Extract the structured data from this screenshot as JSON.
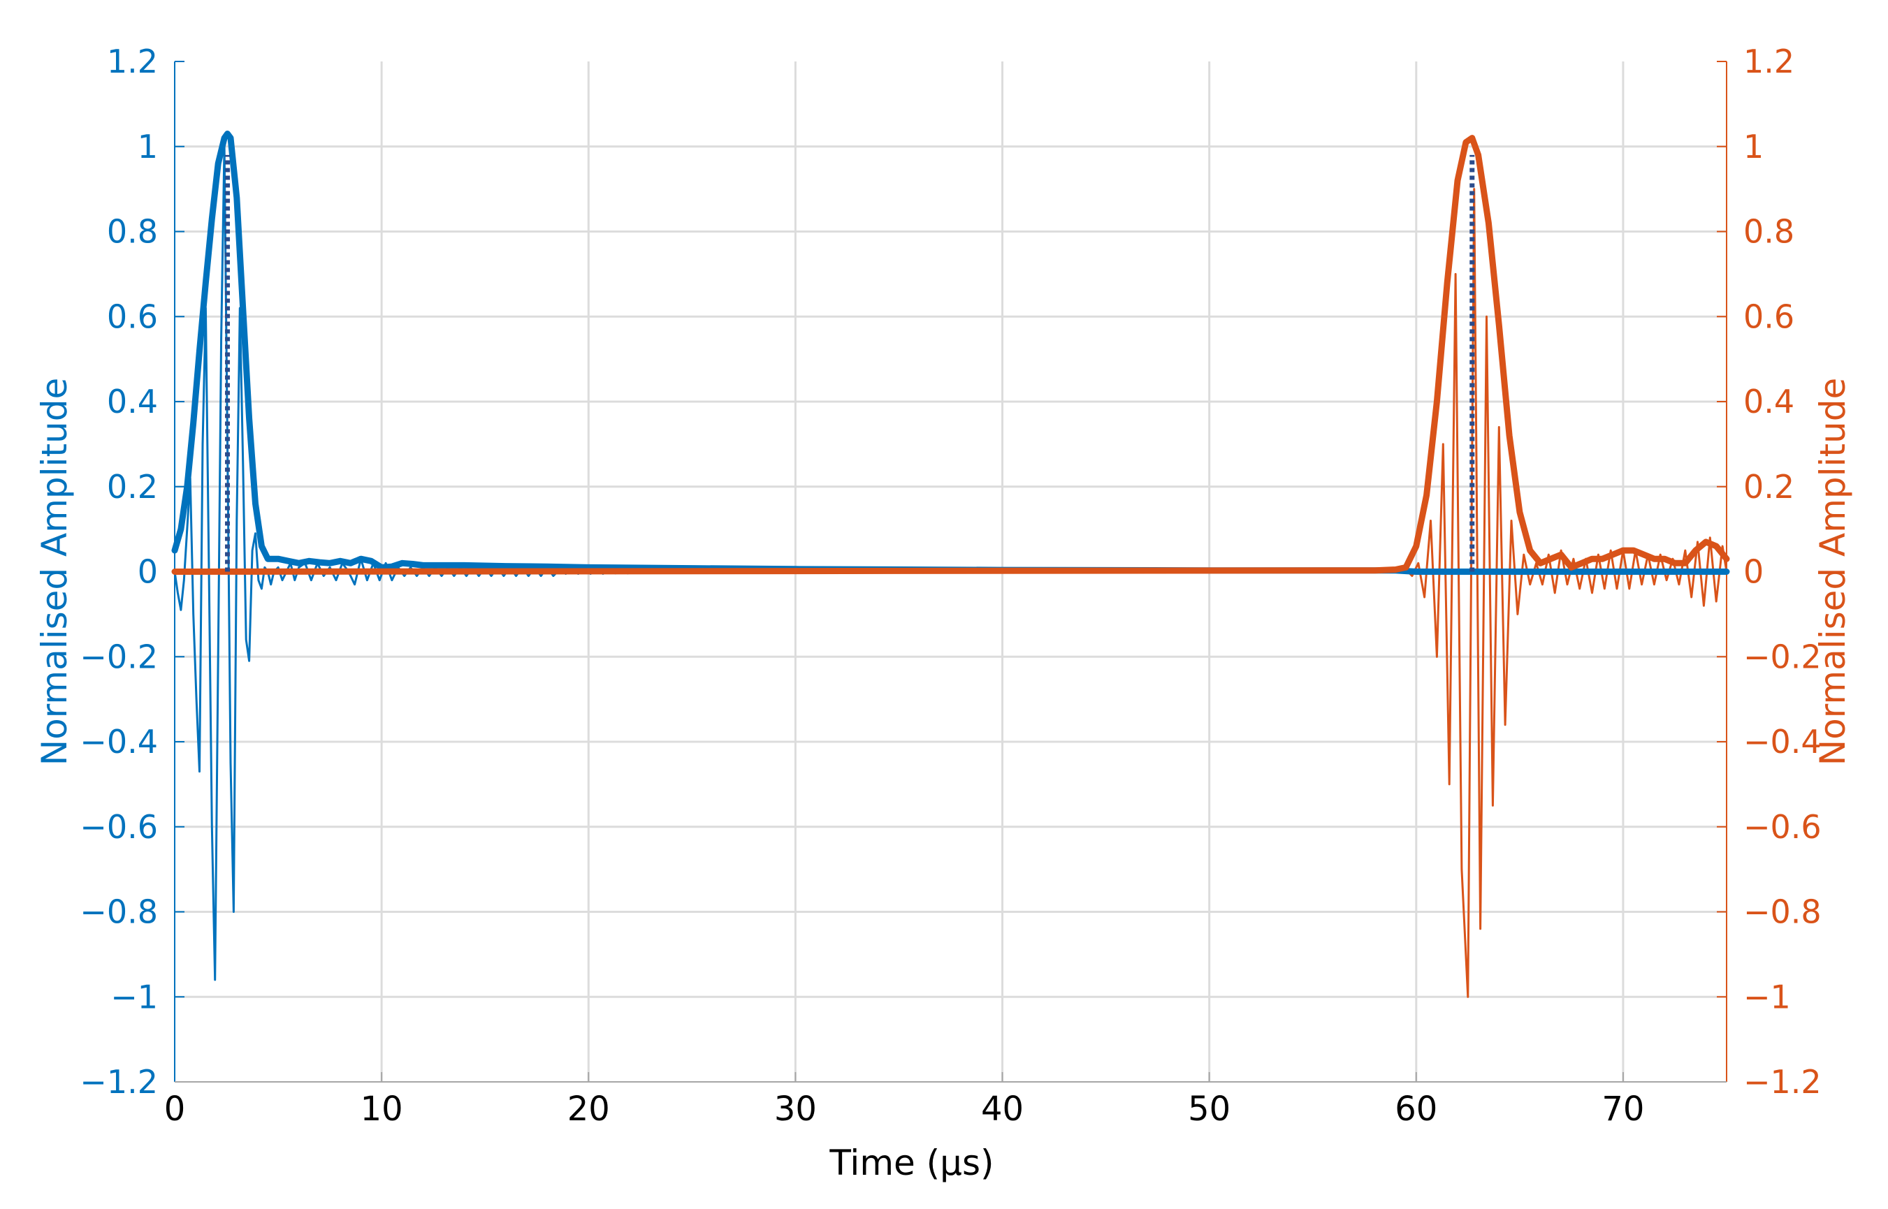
{
  "chart_data": {
    "type": "line",
    "xlabel": "Time (µs)",
    "ylabel_left": "Normalised Amplitude",
    "ylabel_right": "Normalised Amplitude",
    "xlim": [
      0,
      75
    ],
    "ylim": [
      -1.2,
      1.2
    ],
    "x_ticks": [
      "0",
      "10",
      "20",
      "30",
      "40",
      "50",
      "60",
      "70"
    ],
    "x_tick_values": [
      0,
      10,
      20,
      30,
      40,
      50,
      60,
      70
    ],
    "y_ticks": [
      "1.2",
      "1",
      "0.8",
      "0.6",
      "0.4",
      "0.2",
      "0",
      "−0.2",
      "−0.4",
      "−0.6",
      "−0.8",
      "−1",
      "−1.2"
    ],
    "y_tick_values": [
      1.2,
      1,
      0.8,
      0.6,
      0.4,
      0.2,
      0,
      -0.2,
      -0.4,
      -0.6,
      -0.8,
      -1,
      -1.2
    ],
    "grid": true,
    "colors": {
      "left": "#0072BD",
      "right": "#D95319",
      "marker": "#2B4C8C",
      "grid": "#DCDCDC",
      "axis": "#A6A6A6"
    },
    "series": [
      {
        "axis": "left",
        "style": "thin",
        "x": [
          0,
          0.15,
          0.3,
          0.45,
          0.6,
          0.75,
          0.9,
          1.05,
          1.2,
          1.35,
          1.5,
          1.65,
          1.8,
          1.95,
          2.1,
          2.25,
          2.4,
          2.55,
          2.7,
          2.85,
          3.0,
          3.15,
          3.3,
          3.45,
          3.6,
          3.75,
          3.9,
          4.05,
          4.2,
          4.35,
          4.5,
          4.65,
          4.8,
          5.0,
          5.2,
          5.4,
          5.6,
          5.8,
          6.0,
          6.3,
          6.6,
          6.9,
          7.2,
          7.5,
          7.8,
          8.1,
          8.4,
          8.7,
          9.0,
          9.3,
          9.6,
          9.9,
          10.2,
          10.5,
          10.8,
          11.1,
          11.4,
          11.7,
          12.0,
          12.3,
          12.6,
          12.9,
          13.2,
          13.5,
          13.8,
          14.1,
          14.4,
          14.7,
          15.0,
          15.3,
          15.6,
          15.9,
          16.2,
          16.5,
          16.8,
          17.1,
          17.4,
          17.7,
          18.0,
          18.3,
          18.6,
          18.9,
          19.2,
          19.5,
          19.8,
          20.1,
          20.4,
          20.7,
          21.0,
          21.3,
          21.6,
          21.9,
          22.2,
          22.5,
          22.8,
          23.1,
          23.4,
          24,
          30,
          40,
          50,
          60,
          70,
          75
        ],
        "y": [
          0.0,
          -0.05,
          -0.09,
          -0.02,
          0.1,
          0.22,
          -0.1,
          -0.3,
          -0.47,
          0.3,
          0.62,
          0.02,
          -0.6,
          -0.96,
          -0.2,
          0.55,
          1.0,
          0.3,
          -0.45,
          -0.8,
          0.12,
          0.62,
          0.26,
          -0.16,
          -0.21,
          0.05,
          0.09,
          -0.02,
          -0.04,
          0.01,
          0.0,
          -0.03,
          0.0,
          0.01,
          -0.02,
          0.0,
          0.02,
          -0.02,
          0.01,
          0.02,
          -0.02,
          0.02,
          -0.01,
          0.01,
          -0.02,
          0.02,
          0.0,
          -0.03,
          0.03,
          -0.02,
          0.02,
          -0.02,
          0.02,
          -0.02,
          0.01,
          -0.01,
          0.01,
          -0.01,
          0.01,
          -0.01,
          0.01,
          -0.01,
          0.01,
          -0.01,
          0.01,
          -0.01,
          0.01,
          -0.01,
          0.01,
          -0.01,
          0.01,
          -0.01,
          0.01,
          -0.01,
          0.01,
          -0.01,
          0.01,
          -0.01,
          0.01,
          -0.01,
          0.005,
          -0.005,
          0.005,
          -0.005,
          0.005,
          -0.005,
          0.005,
          -0.005,
          0.004,
          -0.004,
          0.004,
          -0.004,
          0.003,
          -0.003,
          0.003,
          -0.003,
          0.002,
          0.0,
          0.0,
          0.0,
          0.0,
          0.0,
          0.0,
          0.0
        ]
      },
      {
        "axis": "left",
        "style": "thick",
        "x": [
          0,
          0.3,
          0.6,
          0.9,
          1.2,
          1.5,
          1.8,
          2.1,
          2.4,
          2.55,
          2.7,
          3.0,
          3.3,
          3.6,
          3.9,
          4.2,
          4.5,
          4.8,
          5.0,
          5.5,
          6.0,
          6.5,
          7.0,
          7.5,
          8.0,
          8.5,
          9.0,
          9.5,
          10.0,
          10.5,
          11.0,
          11.5,
          12.0,
          14.0,
          16.0,
          18.0,
          20.0,
          25.0,
          30.0,
          40.0,
          50.0,
          59.0,
          60.0,
          62.0,
          65.0,
          70.0,
          75.0
        ],
        "y": [
          0.05,
          0.1,
          0.2,
          0.35,
          0.52,
          0.68,
          0.83,
          0.96,
          1.02,
          1.03,
          1.02,
          0.88,
          0.62,
          0.36,
          0.16,
          0.06,
          0.03,
          0.03,
          0.03,
          0.025,
          0.02,
          0.025,
          0.022,
          0.02,
          0.025,
          0.02,
          0.03,
          0.025,
          0.01,
          0.012,
          0.02,
          0.018,
          0.015,
          0.015,
          0.013,
          0.012,
          0.01,
          0.008,
          0.006,
          0.004,
          0.003,
          0.003,
          0.0,
          0.0,
          0.0,
          0.0,
          0.0
        ]
      },
      {
        "axis": "right",
        "style": "thin",
        "x": [
          0,
          58,
          59.0,
          59.5,
          59.8,
          60.1,
          60.4,
          60.7,
          61.0,
          61.3,
          61.6,
          61.9,
          62.2,
          62.5,
          62.8,
          63.1,
          63.4,
          63.7,
          64.0,
          64.3,
          64.6,
          64.9,
          65.2,
          65.5,
          65.8,
          66.1,
          66.4,
          66.7,
          67.0,
          67.3,
          67.6,
          67.9,
          68.2,
          68.5,
          68.8,
          69.1,
          69.4,
          69.7,
          70.0,
          70.3,
          70.6,
          70.9,
          71.2,
          71.5,
          71.8,
          72.1,
          72.4,
          72.7,
          73.0,
          73.3,
          73.6,
          73.9,
          74.2,
          74.5,
          74.8,
          75.0
        ],
        "y": [
          0.0,
          0.0,
          0.0,
          0.005,
          -0.01,
          0.02,
          -0.06,
          0.12,
          -0.2,
          0.3,
          -0.5,
          0.7,
          -0.7,
          -1.0,
          0.9,
          -0.84,
          0.6,
          -0.55,
          0.34,
          -0.36,
          0.12,
          -0.1,
          0.04,
          -0.03,
          0.02,
          -0.03,
          0.04,
          -0.05,
          0.05,
          -0.03,
          0.03,
          -0.04,
          0.03,
          -0.05,
          0.04,
          -0.04,
          0.05,
          -0.04,
          0.05,
          -0.04,
          0.05,
          -0.03,
          0.04,
          -0.03,
          0.04,
          -0.02,
          0.03,
          -0.03,
          0.05,
          -0.06,
          0.07,
          -0.08,
          0.08,
          -0.07,
          0.06,
          0.0
        ]
      },
      {
        "axis": "right",
        "style": "thick",
        "x": [
          0,
          58.0,
          59.0,
          59.5,
          60.0,
          60.5,
          61.0,
          61.5,
          62.0,
          62.4,
          62.7,
          63.0,
          63.5,
          64.0,
          64.5,
          65.0,
          65.5,
          66.0,
          66.5,
          67.0,
          67.5,
          68.0,
          68.5,
          69.0,
          69.5,
          70.0,
          70.5,
          71.0,
          71.5,
          72.0,
          72.5,
          73.0,
          73.5,
          74.0,
          74.5,
          75.0
        ],
        "y": [
          0.0,
          0.003,
          0.005,
          0.01,
          0.06,
          0.18,
          0.4,
          0.68,
          0.92,
          1.01,
          1.02,
          0.98,
          0.82,
          0.58,
          0.32,
          0.14,
          0.05,
          0.02,
          0.03,
          0.04,
          0.01,
          0.02,
          0.03,
          0.03,
          0.04,
          0.05,
          0.05,
          0.04,
          0.03,
          0.03,
          0.02,
          0.02,
          0.05,
          0.07,
          0.06,
          0.03
        ]
      }
    ],
    "peak_markers": [
      {
        "axis": "left",
        "x": 2.55,
        "y_from": 0.0,
        "y_to": 0.98
      },
      {
        "axis": "right",
        "x": 62.7,
        "y_from": 0.0,
        "y_to": 0.98
      }
    ]
  }
}
